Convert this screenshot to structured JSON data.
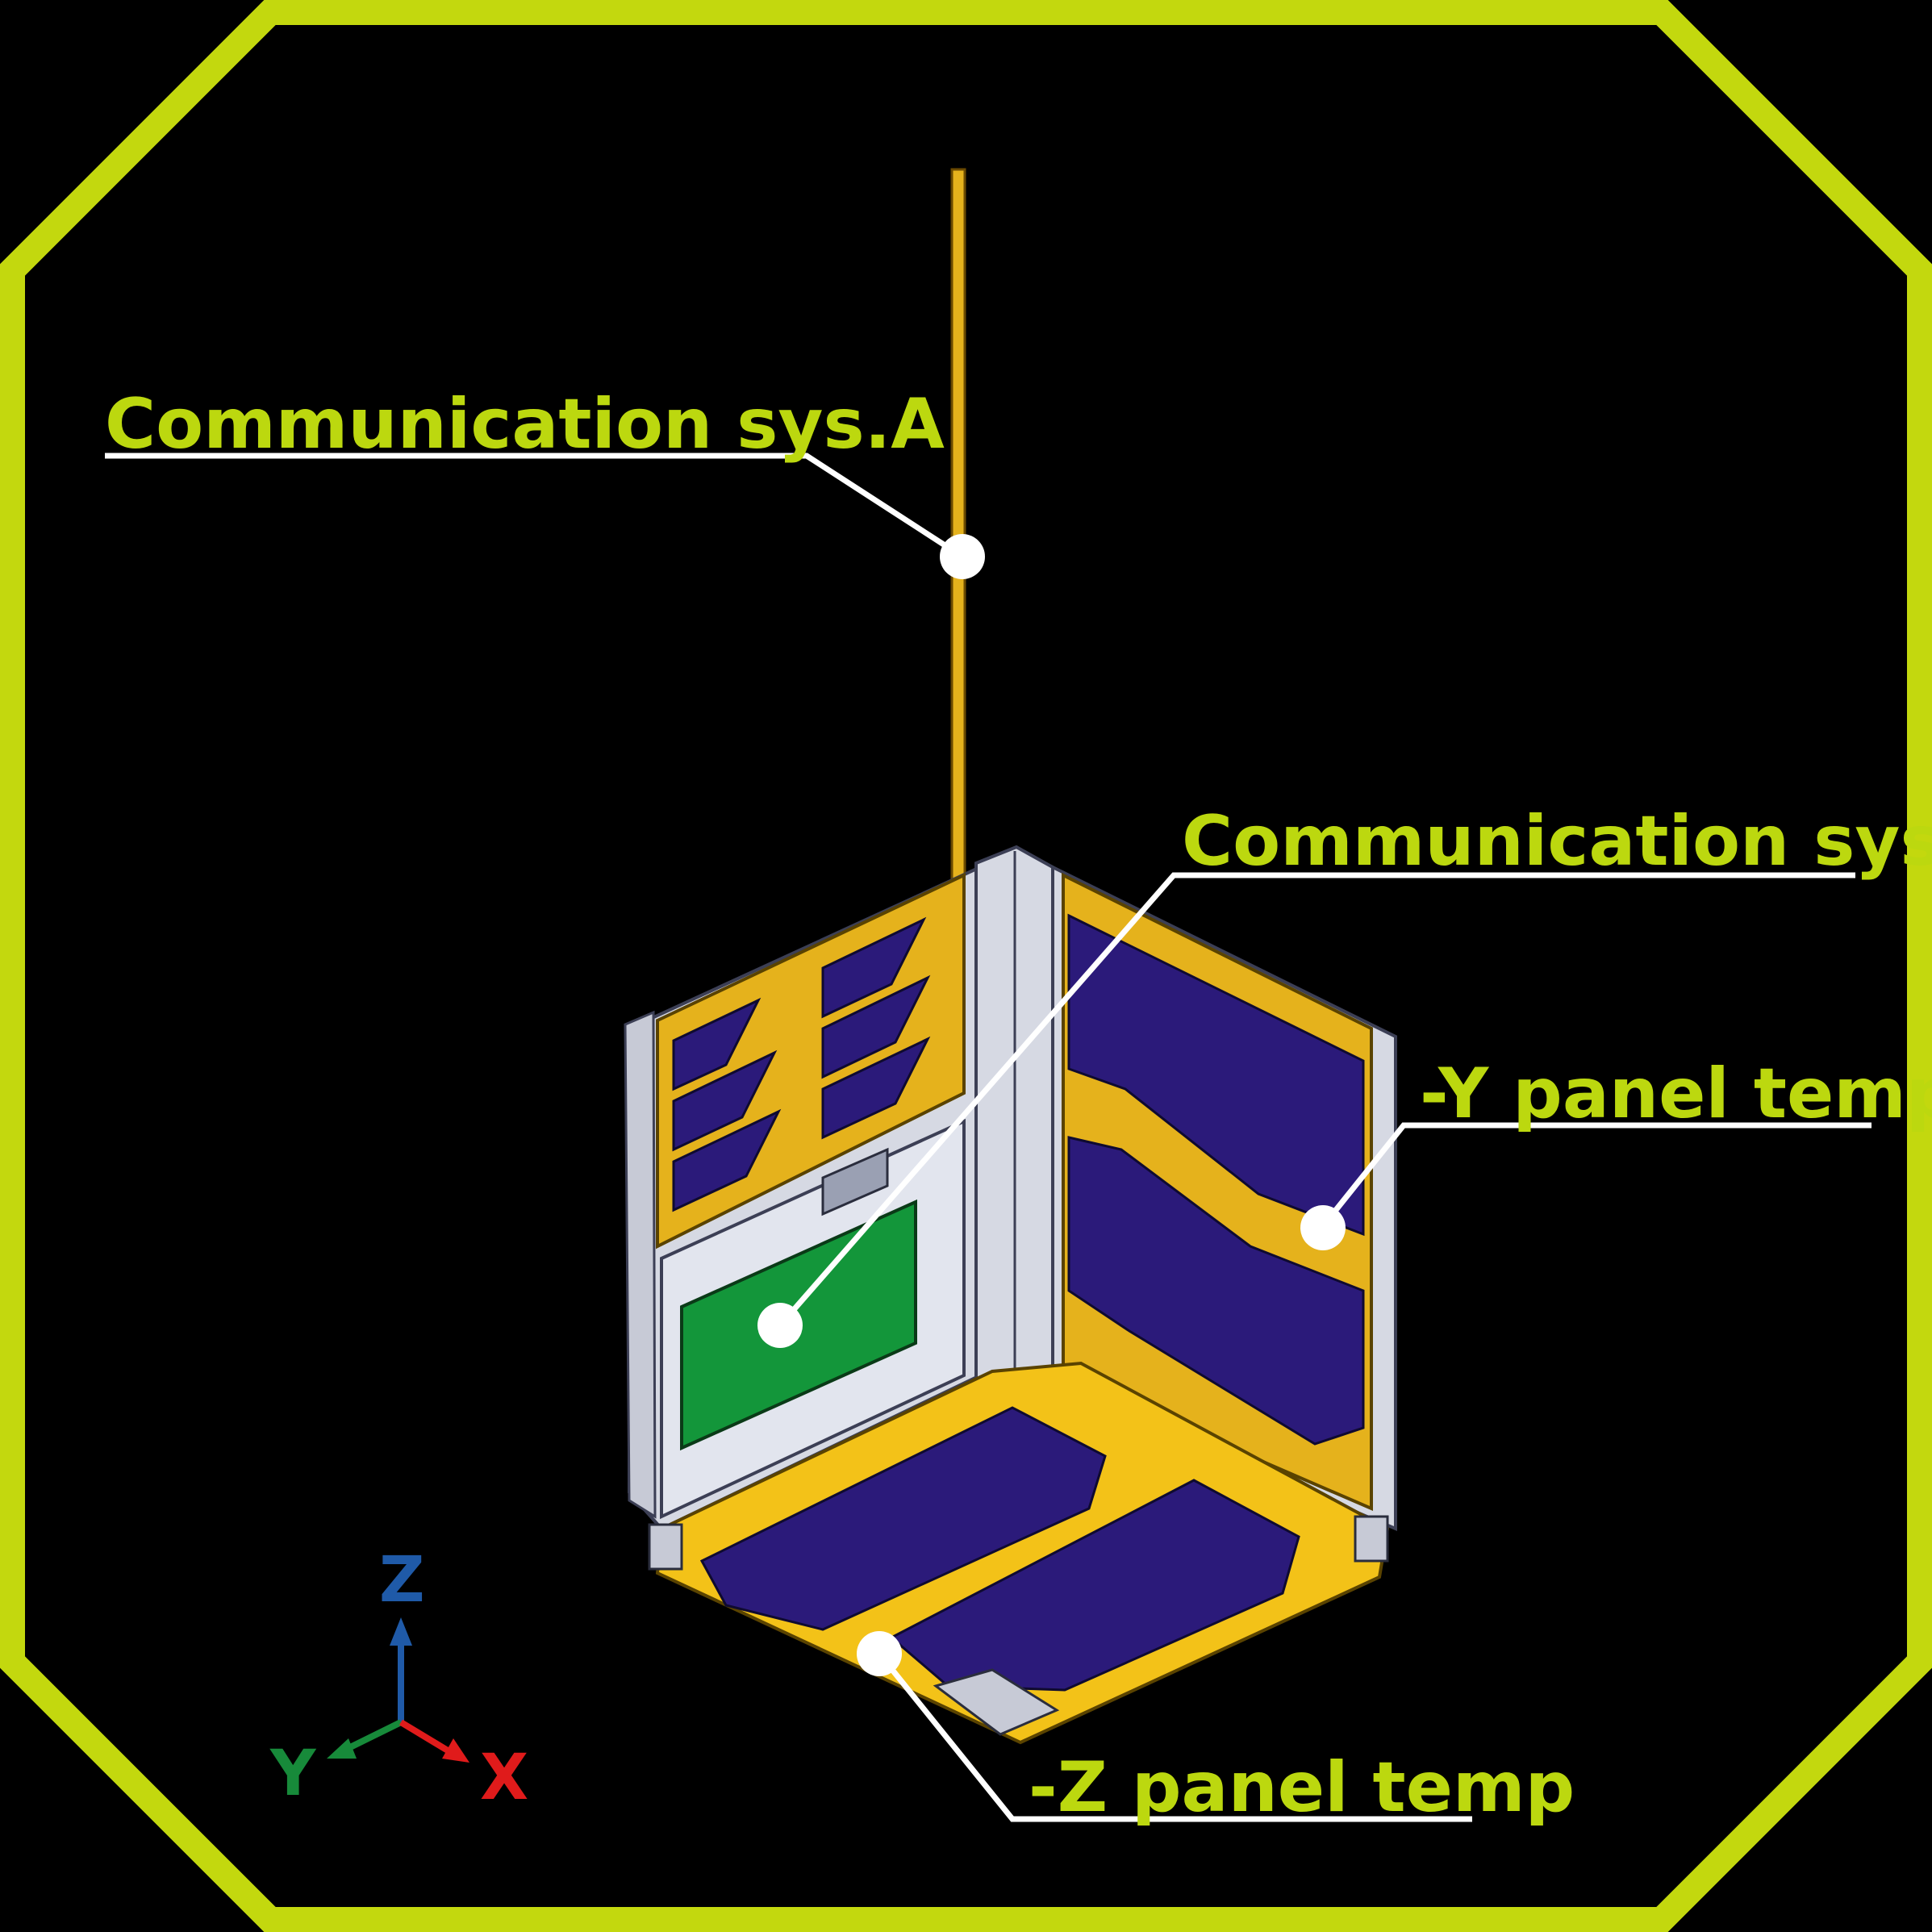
{
  "labels": {
    "comm_a": "Communication sys.A",
    "comm_b": "Communication sys.B",
    "y_panel": "-Y panel temp",
    "z_panel": "-Z panel temp"
  },
  "axes": {
    "z": "Z",
    "y": "Y",
    "x": "X"
  },
  "colors": {
    "frame": "#c3d80e",
    "background": "#000000",
    "label": "#bcd80f",
    "leader": "#ffffff",
    "gold_panel": "#e5b21c",
    "solar_cell": "#2b1a7a",
    "pcb": "#13963a",
    "structure": "#d6d9e3",
    "axis_z": "#1f5aa8",
    "axis_y": "#178a3a",
    "axis_x": "#e01b1b"
  }
}
